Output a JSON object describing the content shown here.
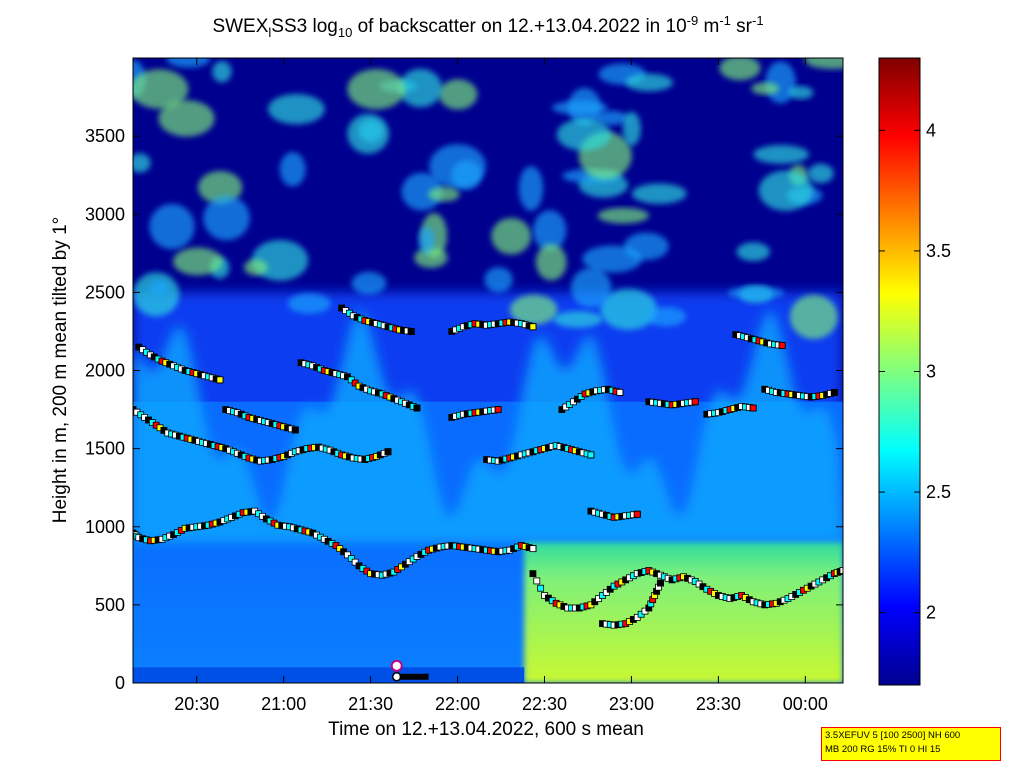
{
  "chart_data": {
    "type": "heatmap",
    "title": {
      "prefix": "SWEX",
      "sub": "l",
      "mid": "SS3 log",
      "sub2": "10",
      "mid2": " of backscatter on 12.+13.04.2022 in 10",
      "sup1": "-9",
      "mid3": " m",
      "sup2": "-1",
      "mid4": " sr",
      "sup3": "-1"
    },
    "xlabel": "Time on 12.+13.04.2022, 600 s mean",
    "ylabel": "Height in m, 200 m mean tilted by 1°",
    "x_ticks": [
      "20:30",
      "21:00",
      "21:30",
      "22:00",
      "22:30",
      "23:00",
      "23:30",
      "00:00"
    ],
    "x_tick_minutes": [
      30,
      60,
      90,
      120,
      150,
      180,
      210,
      240
    ],
    "x_range_minutes": [
      8,
      253
    ],
    "y_ticks": [
      0,
      500,
      1000,
      1500,
      2000,
      2500,
      3000,
      3500
    ],
    "ylim": [
      0,
      4000
    ],
    "colorbar": {
      "range": [
        1.7,
        4.3
      ],
      "ticks": [
        2,
        2.5,
        3,
        3.5,
        4
      ],
      "tick_labels": [
        "2",
        "2.5",
        "3",
        "3.5",
        "4"
      ],
      "colormap": "jet"
    },
    "mixing_layer_minutes": [
      [
        8,
        960
      ],
      [
        10,
        930
      ],
      [
        14,
        910
      ],
      [
        18,
        920
      ],
      [
        22,
        950
      ],
      [
        26,
        990
      ],
      [
        30,
        1000
      ],
      [
        34,
        1010
      ],
      [
        38,
        1030
      ],
      [
        42,
        1060
      ],
      [
        46,
        1090
      ],
      [
        50,
        1100
      ],
      [
        54,
        1050
      ],
      [
        58,
        1010
      ],
      [
        62,
        1000
      ],
      [
        66,
        980
      ],
      [
        70,
        960
      ],
      [
        74,
        920
      ],
      [
        78,
        880
      ],
      [
        82,
        820
      ],
      [
        86,
        750
      ],
      [
        90,
        700
      ],
      [
        94,
        690
      ],
      [
        98,
        710
      ],
      [
        102,
        760
      ],
      [
        106,
        810
      ],
      [
        110,
        850
      ],
      [
        114,
        870
      ],
      [
        118,
        880
      ],
      [
        122,
        870
      ],
      [
        126,
        860
      ],
      [
        130,
        850
      ],
      [
        134,
        840
      ],
      [
        138,
        850
      ],
      [
        142,
        880
      ],
      [
        146,
        860
      ]
    ],
    "residual_layer_minutes": [
      [
        146,
        700
      ],
      [
        150,
        560
      ],
      [
        154,
        510
      ],
      [
        158,
        480
      ],
      [
        162,
        480
      ],
      [
        166,
        500
      ],
      [
        170,
        560
      ],
      [
        174,
        620
      ],
      [
        178,
        660
      ],
      [
        182,
        700
      ],
      [
        186,
        720
      ],
      [
        190,
        690
      ],
      [
        194,
        660
      ],
      [
        198,
        680
      ],
      [
        202,
        650
      ],
      [
        206,
        600
      ],
      [
        210,
        560
      ],
      [
        214,
        540
      ],
      [
        218,
        560
      ],
      [
        222,
        520
      ],
      [
        226,
        500
      ],
      [
        230,
        510
      ],
      [
        234,
        540
      ],
      [
        238,
        580
      ],
      [
        242,
        620
      ],
      [
        246,
        660
      ],
      [
        250,
        700
      ],
      [
        253,
        720
      ]
    ],
    "second_layer_minutes": [
      [
        170,
        380
      ],
      [
        174,
        370
      ],
      [
        178,
        380
      ],
      [
        182,
        420
      ],
      [
        186,
        480
      ],
      [
        188,
        560
      ],
      [
        190,
        640
      ]
    ],
    "upper_layers_minutes": [
      [
        [
          8,
          1750
        ],
        [
          12,
          1700
        ],
        [
          16,
          1650
        ],
        [
          20,
          1600
        ],
        [
          24,
          1580
        ],
        [
          28,
          1560
        ],
        [
          32,
          1540
        ],
        [
          36,
          1520
        ],
        [
          40,
          1500
        ],
        [
          44,
          1470
        ],
        [
          48,
          1440
        ],
        [
          52,
          1420
        ],
        [
          56,
          1430
        ],
        [
          60,
          1450
        ],
        [
          64,
          1480
        ],
        [
          68,
          1500
        ],
        [
          72,
          1510
        ],
        [
          76,
          1490
        ],
        [
          80,
          1460
        ],
        [
          84,
          1440
        ],
        [
          88,
          1430
        ],
        [
          92,
          1450
        ],
        [
          96,
          1480
        ]
      ],
      [
        [
          10,
          2150
        ],
        [
          14,
          2100
        ],
        [
          18,
          2060
        ],
        [
          22,
          2030
        ],
        [
          26,
          2000
        ],
        [
          30,
          1980
        ],
        [
          34,
          1960
        ],
        [
          38,
          1940
        ]
      ],
      [
        [
          40,
          1750
        ],
        [
          44,
          1730
        ],
        [
          48,
          1700
        ],
        [
          52,
          1680
        ],
        [
          56,
          1660
        ],
        [
          60,
          1640
        ],
        [
          64,
          1620
        ]
      ],
      [
        [
          66,
          2050
        ],
        [
          70,
          2030
        ],
        [
          74,
          2000
        ],
        [
          78,
          1980
        ],
        [
          82,
          1960
        ],
        [
          86,
          1900
        ],
        [
          90,
          1870
        ],
        [
          94,
          1850
        ],
        [
          98,
          1820
        ],
        [
          102,
          1790
        ],
        [
          106,
          1760
        ]
      ],
      [
        [
          80,
          2400
        ],
        [
          84,
          2350
        ],
        [
          88,
          2320
        ],
        [
          92,
          2300
        ],
        [
          96,
          2280
        ],
        [
          100,
          2260
        ],
        [
          104,
          2250
        ]
      ],
      [
        [
          118,
          2250
        ],
        [
          122,
          2280
        ],
        [
          126,
          2300
        ],
        [
          130,
          2290
        ],
        [
          134,
          2300
        ],
        [
          138,
          2310
        ],
        [
          142,
          2300
        ],
        [
          146,
          2280
        ]
      ],
      [
        [
          118,
          1700
        ],
        [
          122,
          1720
        ],
        [
          126,
          1730
        ],
        [
          130,
          1740
        ],
        [
          134,
          1750
        ]
      ],
      [
        [
          130,
          1430
        ],
        [
          134,
          1420
        ],
        [
          138,
          1440
        ],
        [
          142,
          1460
        ],
        [
          146,
          1480
        ],
        [
          150,
          1500
        ],
        [
          154,
          1520
        ],
        [
          158,
          1500
        ],
        [
          162,
          1480
        ],
        [
          166,
          1460
        ]
      ],
      [
        [
          156,
          1750
        ],
        [
          160,
          1800
        ],
        [
          164,
          1850
        ],
        [
          168,
          1870
        ],
        [
          172,
          1880
        ],
        [
          176,
          1860
        ]
      ],
      [
        [
          166,
          1100
        ],
        [
          170,
          1080
        ],
        [
          174,
          1060
        ],
        [
          178,
          1070
        ],
        [
          182,
          1080
        ]
      ],
      [
        [
          186,
          1800
        ],
        [
          190,
          1790
        ],
        [
          194,
          1780
        ],
        [
          198,
          1790
        ],
        [
          202,
          1800
        ]
      ],
      [
        [
          206,
          1720
        ],
        [
          210,
          1730
        ],
        [
          214,
          1750
        ],
        [
          218,
          1770
        ],
        [
          222,
          1760
        ]
      ],
      [
        [
          216,
          2230
        ],
        [
          220,
          2210
        ],
        [
          224,
          2190
        ],
        [
          228,
          2170
        ],
        [
          232,
          2160
        ]
      ],
      [
        [
          226,
          1880
        ],
        [
          230,
          1860
        ],
        [
          234,
          1850
        ],
        [
          238,
          1840
        ],
        [
          242,
          1830
        ],
        [
          246,
          1840
        ],
        [
          250,
          1860
        ]
      ]
    ]
  },
  "info_box": {
    "line1": "3.5XEFUV 5 [100 2500] NH 600",
    "line2": "MB 200 RG 15% TI 0 HI 15"
  }
}
